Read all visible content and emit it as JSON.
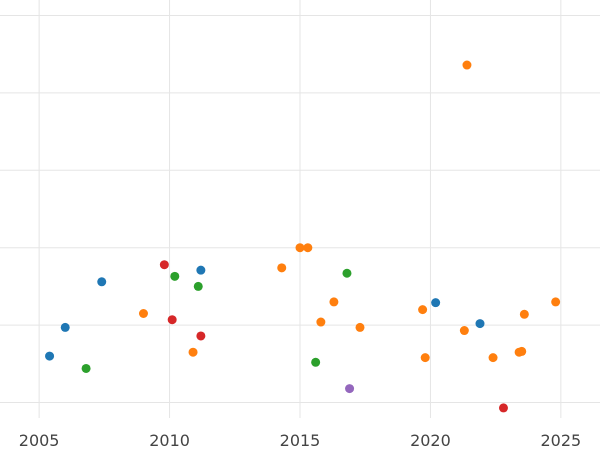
{
  "chart_data": {
    "type": "scatter",
    "title": "",
    "xlabel": "",
    "ylabel": "",
    "xlim": [
      2003.5,
      2026.5
    ],
    "ylim": [
      -0.2,
      5.2
    ],
    "grid": true,
    "legend": "none",
    "x_ticks": [
      "2005",
      "2010",
      "2015",
      "2020",
      "2025"
    ],
    "y_ticks": [
      0,
      1,
      2,
      3,
      4,
      5
    ],
    "colors": {
      "blue": "#1f77b4",
      "orange": "#ff7f0e",
      "green": "#2ca02c",
      "red": "#d62728",
      "purple": "#9467bd"
    },
    "series": [
      {
        "color": "#1f77b4",
        "points": [
          [
            2005.4,
            0.6
          ],
          [
            2006.0,
            0.97
          ],
          [
            2007.4,
            1.56
          ],
          [
            2011.2,
            1.71
          ],
          [
            2020.2,
            1.29
          ],
          [
            2021.9,
            1.02
          ]
        ]
      },
      {
        "color": "#ff7f0e",
        "points": [
          [
            2009.0,
            1.15
          ],
          [
            2010.9,
            0.65
          ],
          [
            2014.3,
            1.74
          ],
          [
            2015.0,
            2.0
          ],
          [
            2015.3,
            2.0
          ],
          [
            2015.8,
            1.04
          ],
          [
            2016.3,
            1.3
          ],
          [
            2017.3,
            0.97
          ],
          [
            2019.7,
            1.2
          ],
          [
            2019.8,
            0.58
          ],
          [
            2021.3,
            0.93
          ],
          [
            2021.4,
            4.36
          ],
          [
            2022.4,
            0.58
          ],
          [
            2023.4,
            0.65
          ],
          [
            2023.5,
            0.66
          ],
          [
            2023.6,
            1.14
          ],
          [
            2024.8,
            1.3
          ]
        ]
      },
      {
        "color": "#2ca02c",
        "points": [
          [
            2006.8,
            0.44
          ],
          [
            2010.2,
            1.63
          ],
          [
            2011.1,
            1.5
          ],
          [
            2015.6,
            0.52
          ],
          [
            2016.8,
            1.67
          ]
        ]
      },
      {
        "color": "#d62728",
        "points": [
          [
            2009.8,
            1.78
          ],
          [
            2010.1,
            1.07
          ],
          [
            2011.2,
            0.86
          ],
          [
            2022.8,
            -0.07
          ]
        ]
      },
      {
        "color": "#9467bd",
        "points": [
          [
            2016.9,
            0.18
          ]
        ]
      }
    ]
  }
}
